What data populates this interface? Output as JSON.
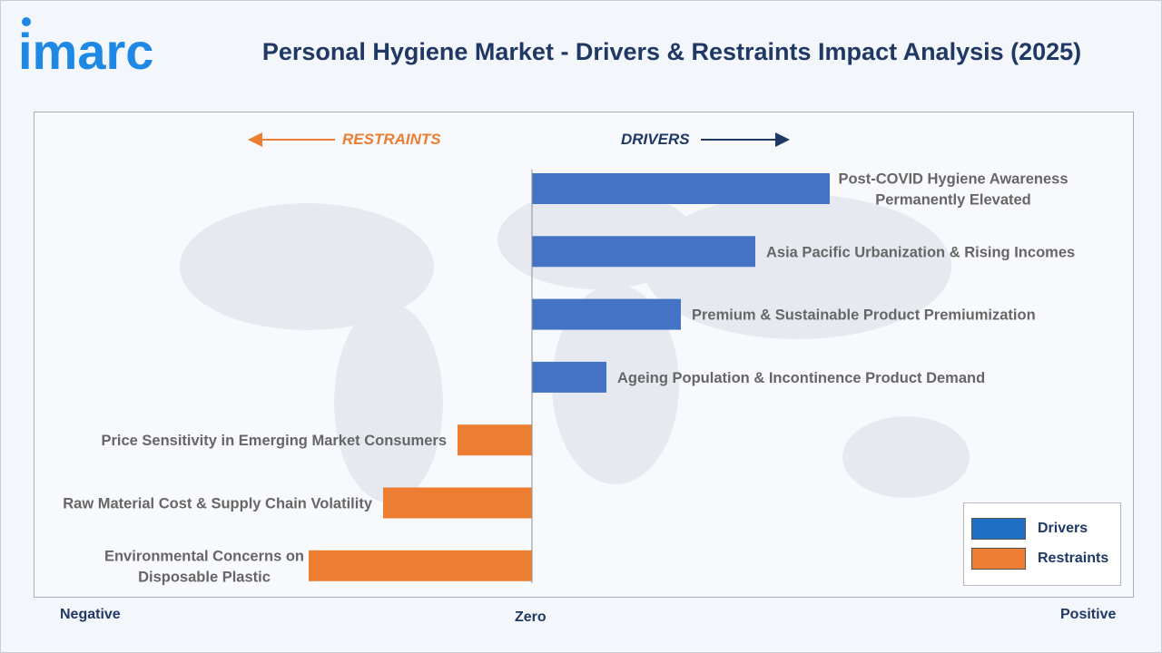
{
  "header": {
    "logo_text": "imarc",
    "title": "Personal Hygiene Market - Drivers & Restraints Impact Analysis (2025)"
  },
  "directions": {
    "restraints": "RESTRAINTS",
    "drivers": "DRIVERS"
  },
  "axis": {
    "negative": "Negative",
    "zero": "Zero",
    "positive": "Positive"
  },
  "legend": {
    "drivers": "Drivers",
    "restraints": "Restraints"
  },
  "colors": {
    "drivers": "#4472c4",
    "restraints": "#ed7d31",
    "drivers_legend": "#1f6fc5",
    "logo": "#1e88e5"
  },
  "chart_data": {
    "type": "bar",
    "orientation": "horizontal",
    "title": "Personal Hygiene Market - Drivers & Restraints Impact Analysis (2025)",
    "xlim": [
      -10,
      10
    ],
    "categories": [
      [
        "Post-COVID Hygiene Awareness",
        "Permanently Elevated"
      ],
      [
        "Asia Pacific Urbanization & Rising Incomes"
      ],
      [
        "Premium & Sustainable Product Premiumization"
      ],
      [
        "Ageing Population & Incontinence Product Demand"
      ],
      [
        "Price Sensitivity in Emerging Market Consumers"
      ],
      [
        "Raw Material Cost & Supply Chain Volatility"
      ],
      [
        "Environmental Concerns on",
        "Disposable Plastic"
      ]
    ],
    "series": [
      {
        "name": "Drivers",
        "values": [
          8,
          6,
          4,
          2,
          0,
          0,
          0
        ]
      },
      {
        "name": "Restraints",
        "values": [
          0,
          0,
          0,
          0,
          -2,
          -4,
          -6
        ]
      }
    ],
    "legend_position": "bottom-right",
    "grid": false
  }
}
